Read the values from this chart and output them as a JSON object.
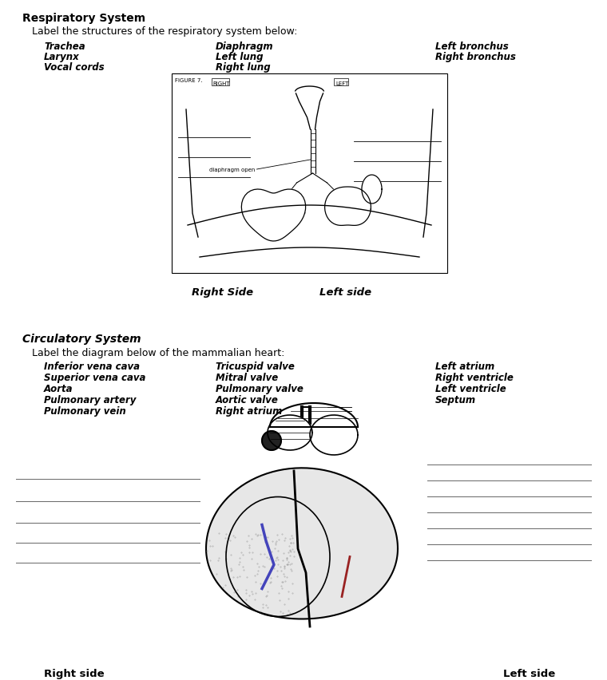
{
  "bg_color": "#ffffff",
  "title_respiratory": "Respiratory System",
  "subtitle_respiratory": "Label the structures of the respiratory system below:",
  "resp_col1": [
    "Trachea",
    "Larynx",
    "Vocal cords"
  ],
  "resp_col2": [
    "Diaphragm",
    "Left lung",
    "Right lung"
  ],
  "resp_col3": [
    "Left bronchus",
    "Right bronchus"
  ],
  "right_side_label": "Right Side",
  "left_side_label": "Left side",
  "figure_label": "FIGURE 7.",
  "right_label_small": "RIGHT",
  "left_label_small": "LEFT",
  "diaphragm_open_label": "diaphragm open",
  "title_circulatory": "Circulatory System",
  "subtitle_circulatory": "Label the diagram below of the mammalian heart:",
  "circ_col1": [
    "Inferior vena cava",
    "Superior vena cava",
    "Aorta",
    "Pulmonary artery",
    "Pulmonary vein"
  ],
  "circ_col2": [
    "Tricuspid valve",
    "Mitral valve",
    "Pulmonary valve",
    "Aortic valve",
    "Right atrium"
  ],
  "circ_col3": [
    "Left atrium",
    "Right ventricle",
    "Left ventricle",
    "Septum"
  ],
  "right_side_circ": "Right side",
  "left_side_circ": "Left side",
  "font_size_title": 10,
  "font_size_subtitle": 9,
  "font_size_items": 8.5,
  "font_size_small": 6,
  "line_color": "#666666"
}
